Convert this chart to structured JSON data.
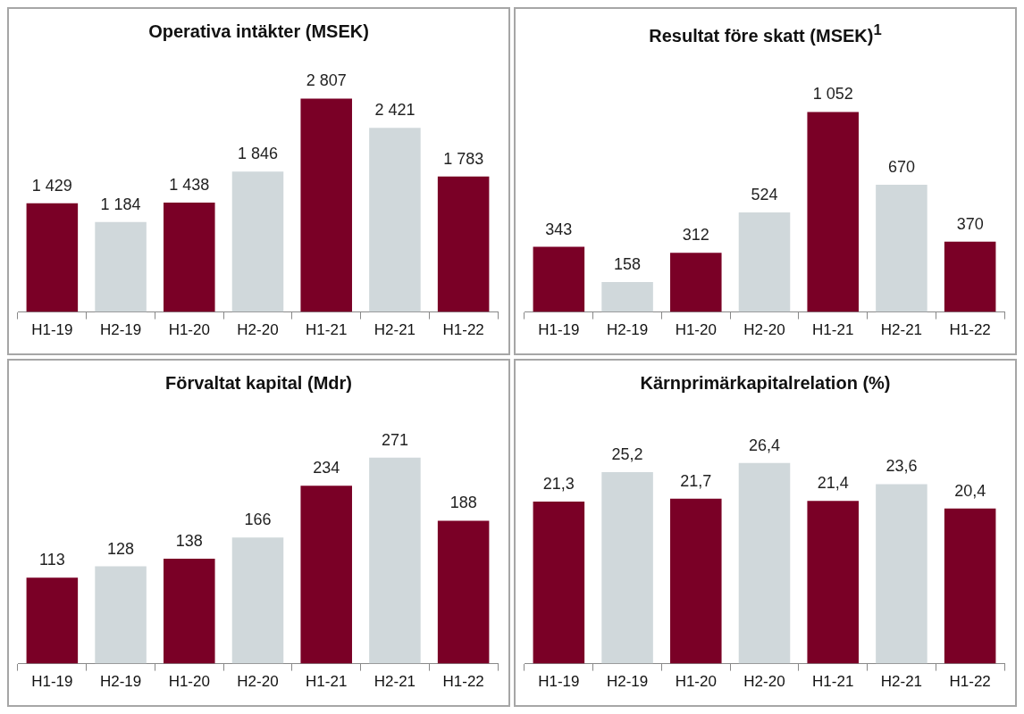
{
  "chart_data": [
    {
      "type": "bar",
      "title": "Operativa intäkter (MSEK)",
      "categories": [
        "H1-19",
        "H2-19",
        "H1-20",
        "H2-20",
        "H1-21",
        "H2-21",
        "H1-22"
      ],
      "values": [
        1429,
        1184,
        1438,
        1846,
        2807,
        2421,
        1783
      ],
      "value_labels": [
        "1 429",
        "1 184",
        "1 438",
        "1 846",
        "2 807",
        "2 421",
        "1 783"
      ],
      "colors": [
        "#7a0026",
        "#d0d8db",
        "#7a0026",
        "#d0d8db",
        "#7a0026",
        "#d0d8db",
        "#7a0026"
      ]
    },
    {
      "type": "bar",
      "title": "Resultat före skatt (MSEK)$^{1}$",
      "categories": [
        "H1-19",
        "H2-19",
        "H1-20",
        "H2-20",
        "H1-21",
        "H2-21",
        "H1-22"
      ],
      "values": [
        343,
        158,
        312,
        524,
        1052,
        670,
        370
      ],
      "value_labels": [
        "343",
        "158",
        "312",
        "524",
        "1 052",
        "670",
        "370"
      ],
      "colors": [
        "#7a0026",
        "#d0d8db",
        "#7a0026",
        "#d0d8db",
        "#7a0026",
        "#d0d8db",
        "#7a0026"
      ]
    },
    {
      "type": "bar",
      "title": "Förvaltat kapital (Mdr)",
      "categories": [
        "H1-19",
        "H2-19",
        "H1-20",
        "H2-20",
        "H1-21",
        "H2-21",
        "H1-22"
      ],
      "values": [
        113,
        128,
        138,
        166,
        234,
        271,
        188
      ],
      "value_labels": [
        "113",
        "128",
        "138",
        "166",
        "234",
        "271",
        "188"
      ],
      "colors": [
        "#7a0026",
        "#d0d8db",
        "#7a0026",
        "#d0d8db",
        "#7a0026",
        "#d0d8db",
        "#7a0026"
      ]
    },
    {
      "type": "bar",
      "title": "Kärnprimärkapitalrelation (%)",
      "categories": [
        "H1-19",
        "H2-19",
        "H1-20",
        "H2-20",
        "H1-21",
        "H2-21",
        "H1-22"
      ],
      "values": [
        21.3,
        25.2,
        21.7,
        26.4,
        21.4,
        23.6,
        20.4
      ],
      "value_labels": [
        "21,3",
        "25,2",
        "21,7",
        "26,4",
        "21,4",
        "23,6",
        "20,4"
      ],
      "colors": [
        "#7a0026",
        "#d0d8db",
        "#7a0026",
        "#d0d8db",
        "#7a0026",
        "#d0d8db",
        "#7a0026"
      ]
    }
  ]
}
